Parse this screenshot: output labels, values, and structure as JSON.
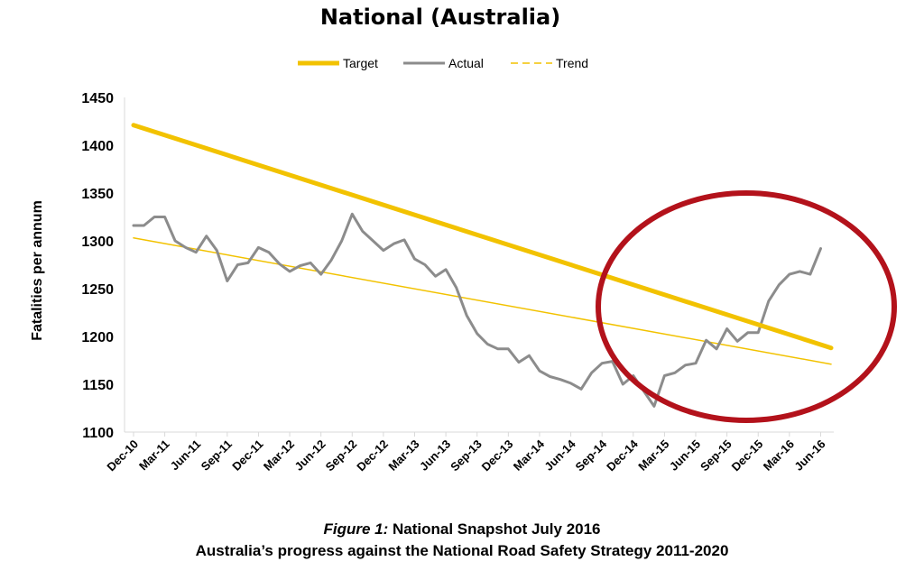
{
  "chart_data": {
    "type": "line",
    "title": "National (Australia)",
    "xlabel": "",
    "ylabel": "Fatalities per annum",
    "ylim": [
      1100,
      1450
    ],
    "yticks": [
      1100,
      1150,
      1200,
      1250,
      1300,
      1350,
      1400,
      1450
    ],
    "x_tick_labels": [
      "Dec-10",
      "Mar-11",
      "Jun-11",
      "Sep-11",
      "Dec-11",
      "Mar-12",
      "Jun-12",
      "Sep-12",
      "Dec-12",
      "Mar-13",
      "Jun-13",
      "Sep-13",
      "Dec-13",
      "Mar-14",
      "Jun-14",
      "Sep-14",
      "Dec-14",
      "Mar-15",
      "Jun-15",
      "Sep-15",
      "Dec-15",
      "Mar-16",
      "Jun-16"
    ],
    "x_tick_step_months": 3,
    "legend": {
      "position": "top-center"
    },
    "series": [
      {
        "name": "Target",
        "style": "solid",
        "color": "#F2C200",
        "points": [
          [
            0,
            1421
          ],
          [
            67,
            1188
          ]
        ]
      },
      {
        "name": "Actual",
        "style": "solid",
        "color": "#8C8C8C",
        "values": [
          1316,
          1316,
          1325,
          1325,
          1300,
          1293,
          1288,
          1305,
          1290,
          1258,
          1275,
          1277,
          1293,
          1288,
          1276,
          1268,
          1274,
          1277,
          1265,
          1280,
          1300,
          1328,
          1310,
          1300,
          1290,
          1297,
          1301,
          1281,
          1275,
          1263,
          1270,
          1251,
          1222,
          1203,
          1192,
          1187,
          1187,
          1173,
          1180,
          1164,
          1158,
          1155,
          1151,
          1145,
          1162,
          1172,
          1174,
          1150,
          1159,
          1143,
          1127,
          1159,
          1162,
          1170,
          1172,
          1196,
          1187,
          1208,
          1195,
          1204,
          1204,
          1237,
          1254,
          1265,
          1268,
          1265,
          1292
        ]
      },
      {
        "name": "Trend",
        "style": "dashed",
        "color": "#F2C200",
        "points": [
          [
            0,
            1303
          ],
          [
            67,
            1171
          ]
        ]
      }
    ],
    "annotations": [
      {
        "type": "ellipse",
        "color": "#B3121B",
        "note": "circled recent rise in Actual"
      }
    ]
  },
  "caption": {
    "figure_label": "Figure 1:",
    "figure_title": "National Snapshot July 2016",
    "subtitle": "Australia’s progress against the National Road Safety Strategy 2011-2020"
  }
}
